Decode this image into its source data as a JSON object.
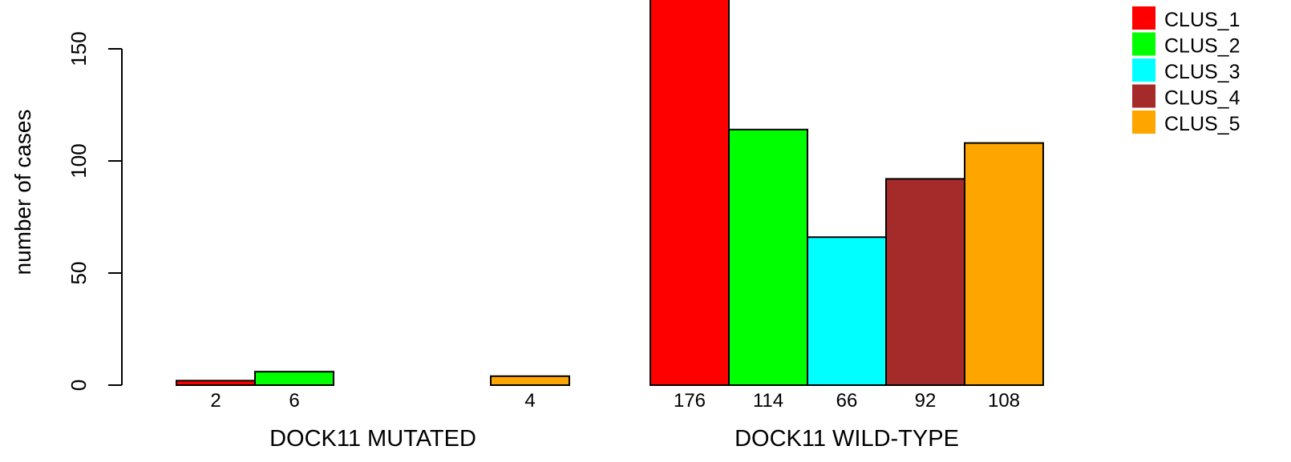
{
  "chart_data": {
    "type": "bar",
    "title": "",
    "xlabel": "",
    "ylabel": "number of cases",
    "ylim": [
      0,
      176
    ],
    "y_ticks": [
      "0",
      "50",
      "100",
      "150"
    ],
    "grid": false,
    "legend_position": "top-right",
    "groups": [
      {
        "label": "DOCK11 MUTATED",
        "values": [
          2,
          6,
          0,
          0,
          4
        ],
        "value_labels": [
          "2",
          "6",
          "",
          "",
          "4"
        ]
      },
      {
        "label": "DOCK11 WILD-TYPE",
        "values": [
          176,
          114,
          66,
          92,
          108
        ],
        "value_labels": [
          "176",
          "114",
          "66",
          "92",
          "108"
        ]
      }
    ],
    "series": [
      {
        "name": "CLUS_1",
        "color": "#ff0000"
      },
      {
        "name": "CLUS_2",
        "color": "#00ff00"
      },
      {
        "name": "CLUS_3",
        "color": "#00ffff"
      },
      {
        "name": "CLUS_4",
        "color": "#a52a2a"
      },
      {
        "name": "CLUS_5",
        "color": "#ffa500"
      }
    ]
  }
}
